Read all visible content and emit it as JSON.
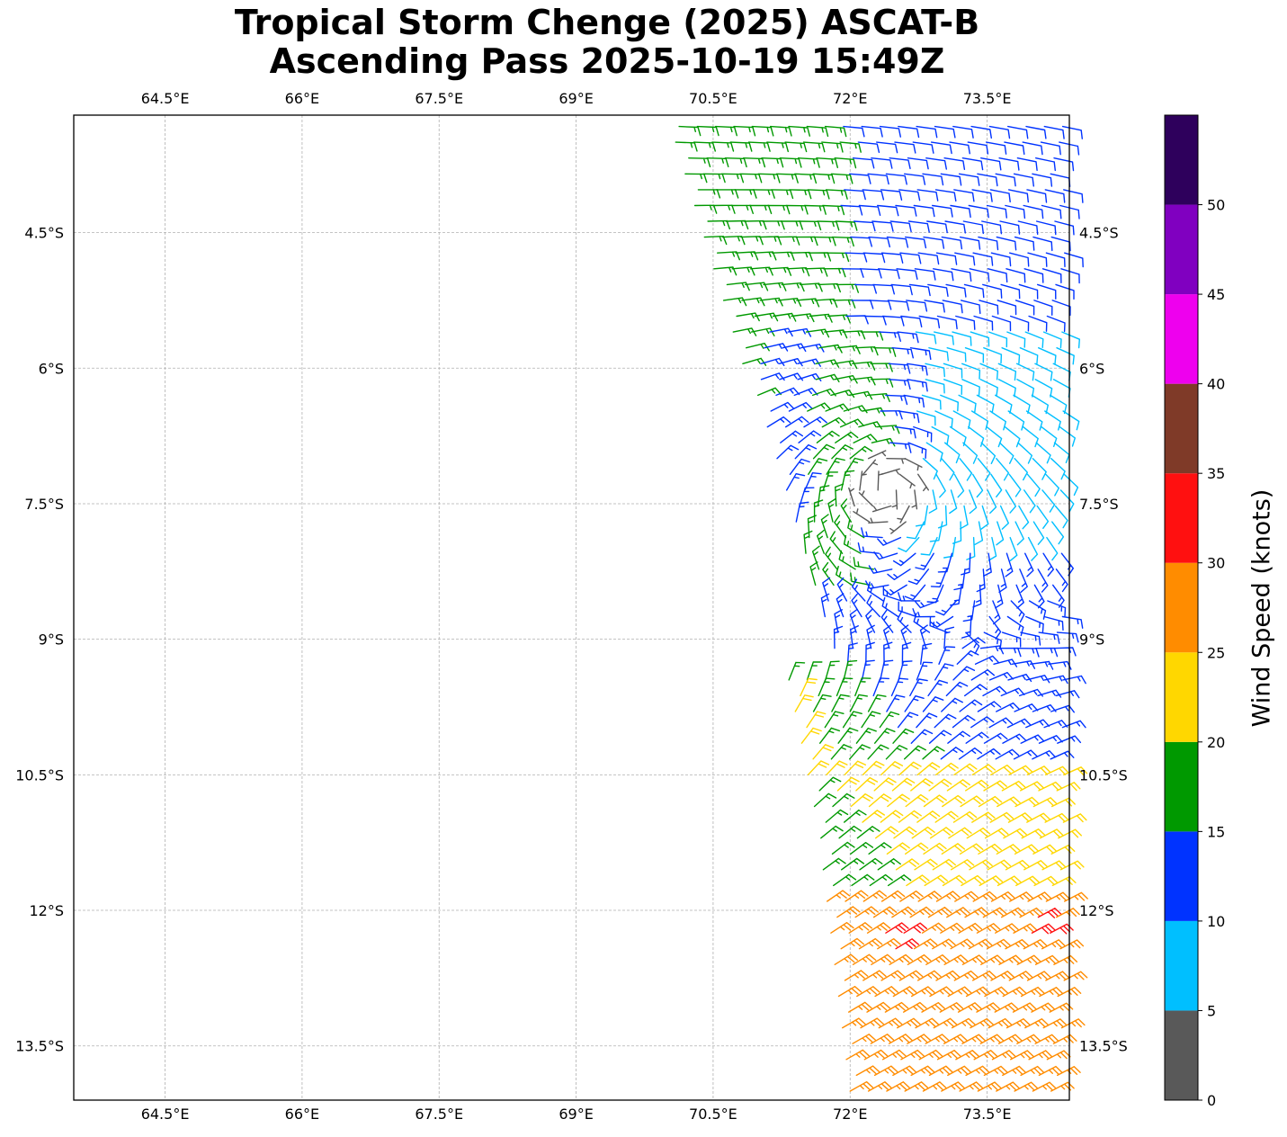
{
  "title": {
    "line1": "Tropical Storm Chenge (2025) ASCAT-B",
    "line2": "Ascending Pass 2025-10-19 15:49Z"
  },
  "map": {
    "lon_range": [
      63.5,
      74.4
    ],
    "lat_range": [
      -14.1,
      -3.2
    ],
    "grid_lines": true,
    "lon_ticks": [
      {
        "value": 64.5,
        "label": "64.5°E"
      },
      {
        "value": 66,
        "label": "66°E"
      },
      {
        "value": 67.5,
        "label": "67.5°E"
      },
      {
        "value": 69,
        "label": "69°E"
      },
      {
        "value": 70.5,
        "label": "70.5°E"
      },
      {
        "value": 72,
        "label": "72°E"
      },
      {
        "value": 73.5,
        "label": "73.5°E"
      }
    ],
    "lat_ticks": [
      {
        "value": -4.5,
        "label": "4.5°S"
      },
      {
        "value": -6,
        "label": "6°S"
      },
      {
        "value": -7.5,
        "label": "7.5°S"
      },
      {
        "value": -9,
        "label": "9°S"
      },
      {
        "value": -10.5,
        "label": "10.5°S"
      },
      {
        "value": -12,
        "label": "12°S"
      },
      {
        "value": -13.5,
        "label": "13.5°S"
      }
    ],
    "storm_center": {
      "lon": 72.4,
      "lat": -7.35
    }
  },
  "colorbar": {
    "label": "Wind Speed (knots)",
    "range": [
      0,
      55
    ],
    "bins": [
      {
        "from": 0,
        "to": 5,
        "color": "#595959"
      },
      {
        "from": 5,
        "to": 10,
        "color": "#00bfff"
      },
      {
        "from": 10,
        "to": 15,
        "color": "#0033ff"
      },
      {
        "from": 15,
        "to": 20,
        "color": "#009900"
      },
      {
        "from": 20,
        "to": 25,
        "color": "#ffd700"
      },
      {
        "from": 25,
        "to": 30,
        "color": "#ff8c00"
      },
      {
        "from": 30,
        "to": 35,
        "color": "#ff1010"
      },
      {
        "from": 35,
        "to": 40,
        "color": "#7f3a28"
      },
      {
        "from": 40,
        "to": 45,
        "color": "#ee00ee"
      },
      {
        "from": 45,
        "to": 50,
        "color": "#8000c0"
      },
      {
        "from": 50,
        "to": 55,
        "color": "#2e005c"
      }
    ],
    "ticks": [
      "0",
      "5",
      "10",
      "15",
      "20",
      "25",
      "30",
      "35",
      "40",
      "45",
      "50"
    ]
  }
}
